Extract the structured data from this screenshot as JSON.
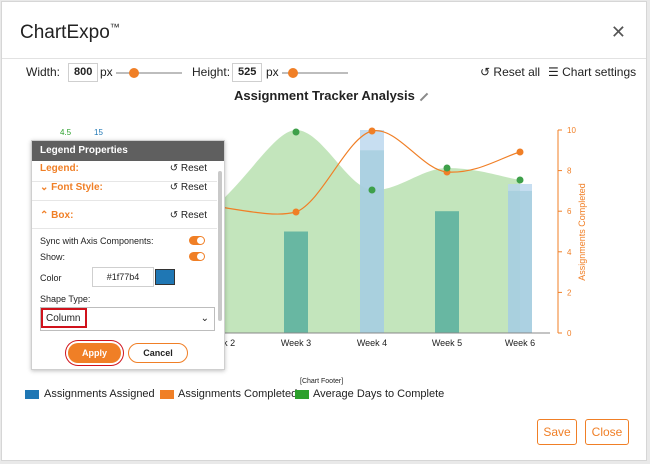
{
  "app": {
    "brand": "ChartExpo",
    "tm": "™"
  },
  "controls": {
    "width_label": "Width:",
    "width_value": "800",
    "width_unit": "px",
    "height_label": "Height:",
    "height_value": "525",
    "height_unit": "px",
    "reset_all": "Reset all",
    "chart_settings": "Chart settings"
  },
  "chart_data": {
    "type": "bar",
    "title": "Assignment Tracker Analysis",
    "categories": [
      "Week 2",
      "Week 3",
      "Week 4",
      "Week 5",
      "Week 6"
    ],
    "series": [
      {
        "name": "Assignments Assigned",
        "values": [
          null,
          5,
          9,
          6,
          7
        ]
      },
      {
        "name": "Assignments Completed",
        "values": [
          null,
          6,
          10,
          8,
          9
        ]
      },
      {
        "name": "Average Days to Complete",
        "values": [
          null,
          15,
          13,
          12.5,
          12.3
        ]
      }
    ],
    "ylabel_right": "Assignments Completed",
    "right_ticks": [
      "0",
      "2",
      "4",
      "6",
      "8",
      "10"
    ],
    "left_top_labels": [
      "4.5",
      "15"
    ],
    "colors": {
      "assigned": "#1f77b4",
      "completed": "#f07f26",
      "avg_days": "#2ca02c"
    }
  },
  "legend_panel": {
    "title": "Legend Properties",
    "legend_label": "Legend:",
    "legend_reset": "Reset",
    "font_style": "Font Style:",
    "font_reset": "Reset",
    "box": "Box:",
    "box_reset": "Reset",
    "sync_label": "Sync with Axis Components:",
    "show_label": "Show:",
    "color_label": "Color",
    "color_value": "#1f77b4",
    "shape_label": "Shape Type:",
    "shape_value": "Column",
    "apply": "Apply",
    "cancel": "Cancel"
  },
  "legend": {
    "items": [
      {
        "label": "Assignments Assigned",
        "color": "#1f77b4"
      },
      {
        "label": "Assignments Completed",
        "color": "#f07f26"
      },
      {
        "label": "Average Days to Complete",
        "color": "#2ca02c"
      }
    ],
    "chart_footer": "[Chart Footer]"
  },
  "footer": {
    "save": "Save",
    "close": "Close"
  }
}
